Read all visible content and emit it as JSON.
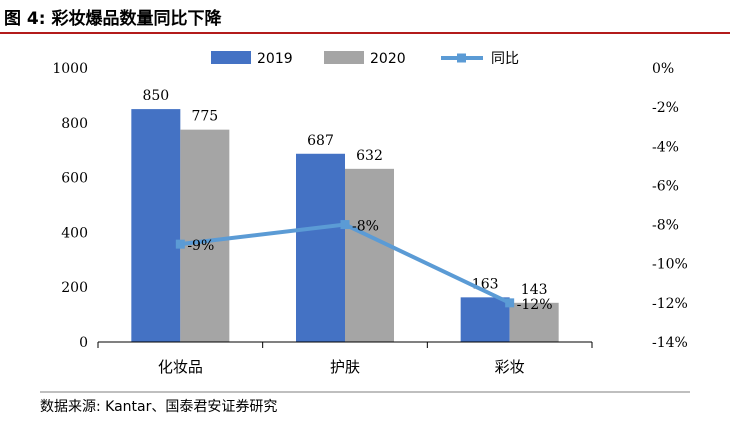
{
  "figure": {
    "title": "图 4:  彩妆爆品数量同比下降",
    "source": "数据来源:  Kantar、国泰君安证券研究"
  },
  "colors": {
    "series_2019": "#4472c4",
    "series_2020": "#a5a5a5",
    "line_yoy": "#5b9bd5",
    "title_rule": "#b31b1b",
    "axis": "#000000"
  },
  "chart_data": {
    "type": "bar",
    "categories": [
      "化妆品",
      "护肤",
      "彩妆"
    ],
    "series": [
      {
        "name": "2019",
        "type": "bar",
        "axis": "left",
        "values": [
          850,
          687,
          163
        ]
      },
      {
        "name": "2020",
        "type": "bar",
        "axis": "left",
        "values": [
          775,
          632,
          143
        ]
      },
      {
        "name": "同比",
        "type": "line",
        "axis": "right",
        "values": [
          -9,
          -8,
          -12
        ],
        "labels": [
          "-9%",
          "-8%",
          "-12%"
        ]
      }
    ],
    "bar_labels": [
      [
        "850",
        "687",
        "163"
      ],
      [
        "775",
        "632",
        "143"
      ]
    ],
    "ylim": [
      0,
      1000
    ],
    "yticks": [
      0,
      200,
      400,
      600,
      800,
      1000
    ],
    "ytick_labels": [
      "0",
      "200",
      "400",
      "600",
      "800",
      "1000"
    ],
    "y2lim": [
      -14,
      0
    ],
    "y2ticks": [
      0,
      -2,
      -4,
      -6,
      -8,
      -10,
      -12,
      -14
    ],
    "y2tick_labels": [
      "0%",
      "-2%",
      "-4%",
      "-6%",
      "-8%",
      "-10%",
      "-12%",
      "-14%"
    ],
    "legend": [
      "2019",
      "2020",
      "同比"
    ],
    "legend_position": "top",
    "grid": false
  }
}
